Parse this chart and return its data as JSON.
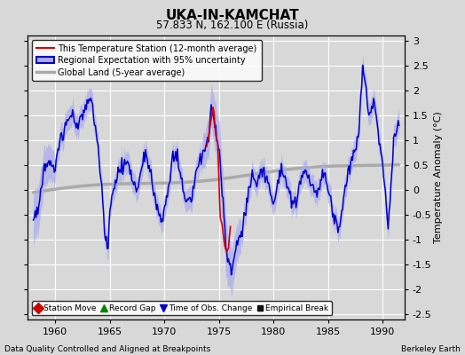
{
  "title": "UKA-IN-KAMCHAT",
  "subtitle": "57.833 N, 162.100 E (Russia)",
  "xlabel_left": "Data Quality Controlled and Aligned at Breakpoints",
  "xlabel_right": "Berkeley Earth",
  "ylabel": "Temperature Anomaly (°C)",
  "xlim": [
    1957.5,
    1992.0
  ],
  "ylim": [
    -2.6,
    3.1
  ],
  "yticks": [
    -2.5,
    -2,
    -1.5,
    -1,
    -0.5,
    0,
    0.5,
    1,
    1.5,
    2,
    2.5,
    3
  ],
  "xticks": [
    1960,
    1965,
    1970,
    1975,
    1980,
    1985,
    1990
  ],
  "background_color": "#d8d8d8",
  "plot_bg_color": "#d8d8d8",
  "grid_color": "#ffffff",
  "station_color": "#dd0000",
  "regional_color": "#0000cc",
  "regional_fill_color": "#aaaaee",
  "global_color": "#aaaaaa",
  "figsize": [
    5.24,
    4.0
  ],
  "dpi": 100
}
